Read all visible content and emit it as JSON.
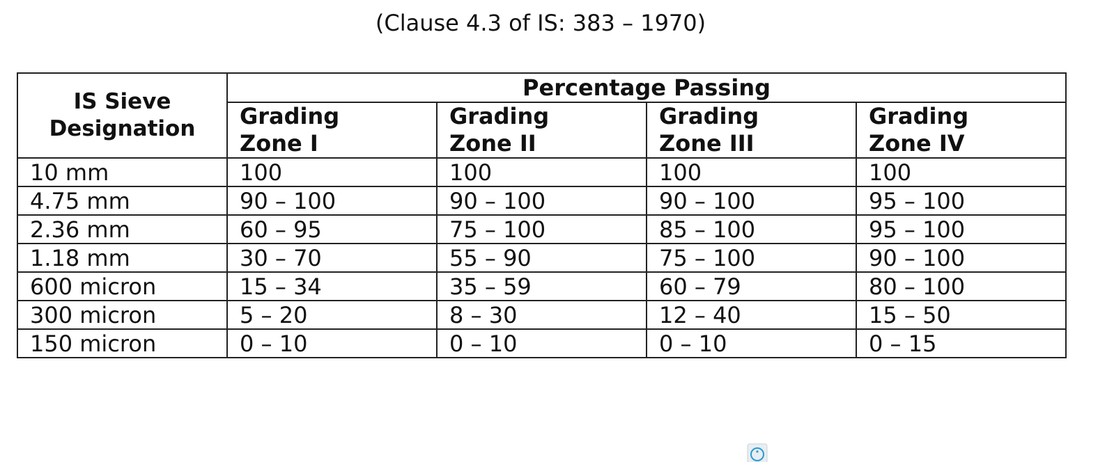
{
  "caption": "(Clause 4.3 of IS: 383 – 1970)",
  "table": {
    "header": {
      "sieve": "IS Sieve Designation",
      "group": "Percentage Passing",
      "zones": [
        "Grading Zone I",
        "Grading Zone II",
        "Grading Zone III",
        "Grading Zone IV"
      ]
    },
    "rows": [
      [
        "10 mm",
        "100",
        "100",
        "100",
        "100"
      ],
      [
        "4.75 mm",
        "90 – 100",
        "90 – 100",
        "90 – 100",
        "95 – 100"
      ],
      [
        "2.36 mm",
        "60 – 95",
        "75 – 100",
        "85 – 100",
        "95 – 100"
      ],
      [
        "1.18 mm",
        "30 – 70",
        "55 – 90",
        "75 – 100",
        "90 – 100"
      ],
      [
        "600 micron",
        "15 – 34",
        "35 – 59",
        "60 – 79",
        "80 – 100"
      ],
      [
        "300 micron",
        "5 – 20",
        "8 – 30",
        "12 – 40",
        "15 – 50"
      ],
      [
        "150 micron",
        "0 – 10",
        "0 – 10",
        "0 – 10",
        "0 – 15"
      ]
    ]
  }
}
